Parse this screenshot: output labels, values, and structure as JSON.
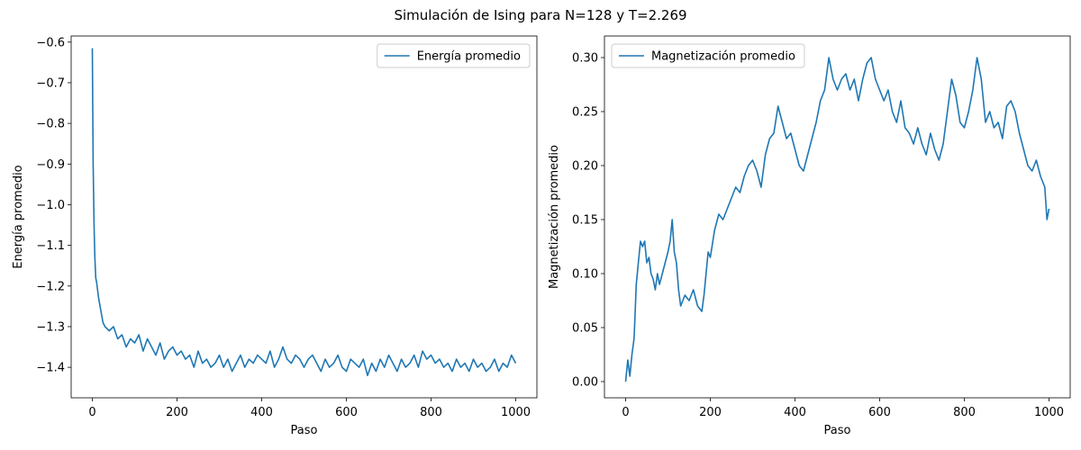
{
  "suptitle": "Simulación de Ising para N=128 y T=2.269",
  "chart_data": [
    {
      "type": "line",
      "xlabel": "Paso",
      "ylabel": "Energía promedio",
      "xlim": [
        -50,
        1050
      ],
      "ylim": [
        -1.475,
        -0.585
      ],
      "xticks": [
        0,
        200,
        400,
        600,
        800,
        1000
      ],
      "xtick_labels": [
        "0",
        "200",
        "400",
        "600",
        "800",
        "1000"
      ],
      "yticks": [
        -1.4,
        -1.3,
        -1.2,
        -1.1,
        -1.0,
        -0.9,
        -0.8,
        -0.7,
        -0.6
      ],
      "ytick_labels": [
        "−1.4",
        "−1.3",
        "−1.2",
        "−1.1",
        "−1.0",
        "−0.9",
        "−0.8",
        "−0.7",
        "−0.6"
      ],
      "legend": "upper right",
      "grid": false,
      "series": [
        {
          "name": "Energía promedio",
          "color": "#1f77b4",
          "x": [
            0,
            2,
            4,
            6,
            8,
            10,
            15,
            20,
            25,
            30,
            40,
            50,
            60,
            70,
            80,
            90,
            100,
            110,
            120,
            130,
            140,
            150,
            160,
            170,
            180,
            190,
            200,
            210,
            220,
            230,
            240,
            250,
            260,
            270,
            280,
            290,
            300,
            310,
            320,
            330,
            340,
            350,
            360,
            370,
            380,
            390,
            400,
            410,
            420,
            430,
            440,
            450,
            460,
            470,
            480,
            490,
            500,
            510,
            520,
            530,
            540,
            550,
            560,
            570,
            580,
            590,
            600,
            610,
            620,
            630,
            640,
            650,
            660,
            670,
            680,
            690,
            700,
            710,
            720,
            730,
            740,
            750,
            760,
            770,
            780,
            790,
            800,
            810,
            820,
            830,
            840,
            850,
            860,
            870,
            880,
            890,
            900,
            910,
            920,
            930,
            940,
            950,
            960,
            970,
            980,
            990,
            1000
          ],
          "y": [
            -0.615,
            -0.9,
            -1.05,
            -1.13,
            -1.18,
            -1.19,
            -1.23,
            -1.26,
            -1.29,
            -1.3,
            -1.31,
            -1.3,
            -1.33,
            -1.32,
            -1.35,
            -1.33,
            -1.34,
            -1.32,
            -1.36,
            -1.33,
            -1.35,
            -1.37,
            -1.34,
            -1.38,
            -1.36,
            -1.35,
            -1.37,
            -1.36,
            -1.38,
            -1.37,
            -1.4,
            -1.36,
            -1.39,
            -1.38,
            -1.4,
            -1.39,
            -1.37,
            -1.4,
            -1.38,
            -1.41,
            -1.39,
            -1.37,
            -1.4,
            -1.38,
            -1.39,
            -1.37,
            -1.38,
            -1.39,
            -1.36,
            -1.4,
            -1.38,
            -1.35,
            -1.38,
            -1.39,
            -1.37,
            -1.38,
            -1.4,
            -1.38,
            -1.37,
            -1.39,
            -1.41,
            -1.38,
            -1.4,
            -1.39,
            -1.37,
            -1.4,
            -1.41,
            -1.38,
            -1.39,
            -1.4,
            -1.38,
            -1.42,
            -1.39,
            -1.41,
            -1.38,
            -1.4,
            -1.37,
            -1.39,
            -1.41,
            -1.38,
            -1.4,
            -1.39,
            -1.37,
            -1.4,
            -1.36,
            -1.38,
            -1.37,
            -1.39,
            -1.38,
            -1.4,
            -1.39,
            -1.41,
            -1.38,
            -1.4,
            -1.39,
            -1.41,
            -1.38,
            -1.4,
            -1.39,
            -1.41,
            -1.4,
            -1.38,
            -1.41,
            -1.39,
            -1.4,
            -1.37,
            -1.39
          ]
        }
      ]
    },
    {
      "type": "line",
      "xlabel": "Paso",
      "ylabel": "Magnetización promedio",
      "xlim": [
        -50,
        1050
      ],
      "ylim": [
        -0.015,
        0.32
      ],
      "xticks": [
        0,
        200,
        400,
        600,
        800,
        1000
      ],
      "xtick_labels": [
        "0",
        "200",
        "400",
        "600",
        "800",
        "1000"
      ],
      "yticks": [
        0.0,
        0.05,
        0.1,
        0.15,
        0.2,
        0.25,
        0.3
      ],
      "ytick_labels": [
        "0.00",
        "0.05",
        "0.10",
        "0.15",
        "0.20",
        "0.25",
        "0.30"
      ],
      "legend": "upper left",
      "grid": false,
      "series": [
        {
          "name": "Magnetización promedio",
          "color": "#1f77b4",
          "x": [
            0,
            5,
            10,
            15,
            20,
            25,
            30,
            35,
            40,
            45,
            50,
            55,
            60,
            65,
            70,
            75,
            80,
            90,
            100,
            105,
            110,
            115,
            120,
            125,
            130,
            140,
            150,
            160,
            170,
            180,
            185,
            190,
            195,
            200,
            210,
            220,
            230,
            240,
            250,
            260,
            270,
            280,
            290,
            300,
            310,
            320,
            330,
            340,
            350,
            360,
            370,
            380,
            390,
            400,
            410,
            420,
            430,
            440,
            450,
            460,
            470,
            480,
            490,
            500,
            510,
            520,
            530,
            540,
            550,
            560,
            570,
            580,
            590,
            600,
            610,
            620,
            630,
            640,
            650,
            660,
            670,
            680,
            690,
            700,
            710,
            720,
            730,
            740,
            750,
            760,
            770,
            780,
            790,
            800,
            810,
            820,
            830,
            840,
            850,
            860,
            870,
            880,
            890,
            900,
            910,
            920,
            930,
            940,
            950,
            960,
            970,
            980,
            990,
            995,
            1000
          ],
          "y": [
            0.0,
            0.02,
            0.005,
            0.025,
            0.04,
            0.09,
            0.11,
            0.13,
            0.125,
            0.13,
            0.11,
            0.115,
            0.1,
            0.095,
            0.085,
            0.1,
            0.09,
            0.105,
            0.12,
            0.13,
            0.15,
            0.12,
            0.11,
            0.085,
            0.07,
            0.08,
            0.075,
            0.085,
            0.07,
            0.065,
            0.08,
            0.1,
            0.12,
            0.115,
            0.14,
            0.155,
            0.15,
            0.16,
            0.17,
            0.18,
            0.175,
            0.19,
            0.2,
            0.205,
            0.195,
            0.18,
            0.21,
            0.225,
            0.23,
            0.255,
            0.24,
            0.225,
            0.23,
            0.215,
            0.2,
            0.195,
            0.21,
            0.225,
            0.24,
            0.26,
            0.27,
            0.3,
            0.28,
            0.27,
            0.28,
            0.285,
            0.27,
            0.28,
            0.26,
            0.28,
            0.295,
            0.3,
            0.28,
            0.27,
            0.26,
            0.27,
            0.25,
            0.24,
            0.26,
            0.235,
            0.23,
            0.22,
            0.235,
            0.22,
            0.21,
            0.23,
            0.215,
            0.205,
            0.22,
            0.25,
            0.28,
            0.265,
            0.24,
            0.235,
            0.25,
            0.27,
            0.3,
            0.28,
            0.24,
            0.25,
            0.235,
            0.24,
            0.225,
            0.255,
            0.26,
            0.25,
            0.23,
            0.215,
            0.2,
            0.195,
            0.205,
            0.19,
            0.18,
            0.15,
            0.16
          ]
        }
      ]
    }
  ]
}
